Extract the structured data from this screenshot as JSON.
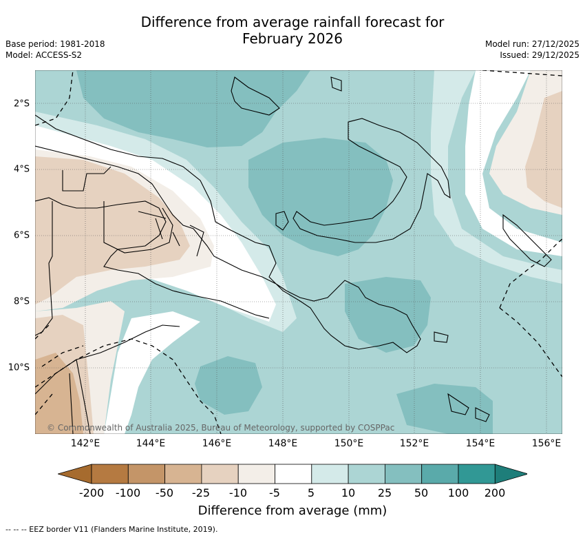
{
  "header": {
    "title_line1": "Difference from average rainfall forecast for",
    "title_line2": "February 2026",
    "base_period": "Base period: 1981-2018",
    "model": "Model: ACCESS-S2",
    "model_run": "Model run: 27/12/2025",
    "issued": "Issued: 29/12/2025"
  },
  "map": {
    "lon_labels": [
      "142°E",
      "144°E",
      "146°E",
      "148°E",
      "150°E",
      "152°E",
      "154°E",
      "156°E"
    ],
    "lat_labels": [
      "2°S",
      "4°S",
      "6°S",
      "8°S",
      "10°S"
    ],
    "copyright": "© Commonwealth of Australia 2025, Bureau of Meteorology, supported by COSPPac"
  },
  "legend": {
    "ticks": [
      "-200",
      "-100",
      "-50",
      "-25",
      "-10",
      "-5",
      "5",
      "10",
      "25",
      "50",
      "100",
      "200"
    ],
    "colors": [
      "#a66b2e",
      "#b57a41",
      "#c49568",
      "#d7b492",
      "#e6d2c0",
      "#f3eee8",
      "#ffffff",
      "#d4eae9",
      "#acd5d4",
      "#84bfbf",
      "#5aaaaa",
      "#319895",
      "#1e7e7a"
    ],
    "label": "Difference from average (mm)"
  },
  "footer": {
    "eez_note": "-- -- -- EEZ border V11 (Flanders Marine Institute, 2019)."
  }
}
